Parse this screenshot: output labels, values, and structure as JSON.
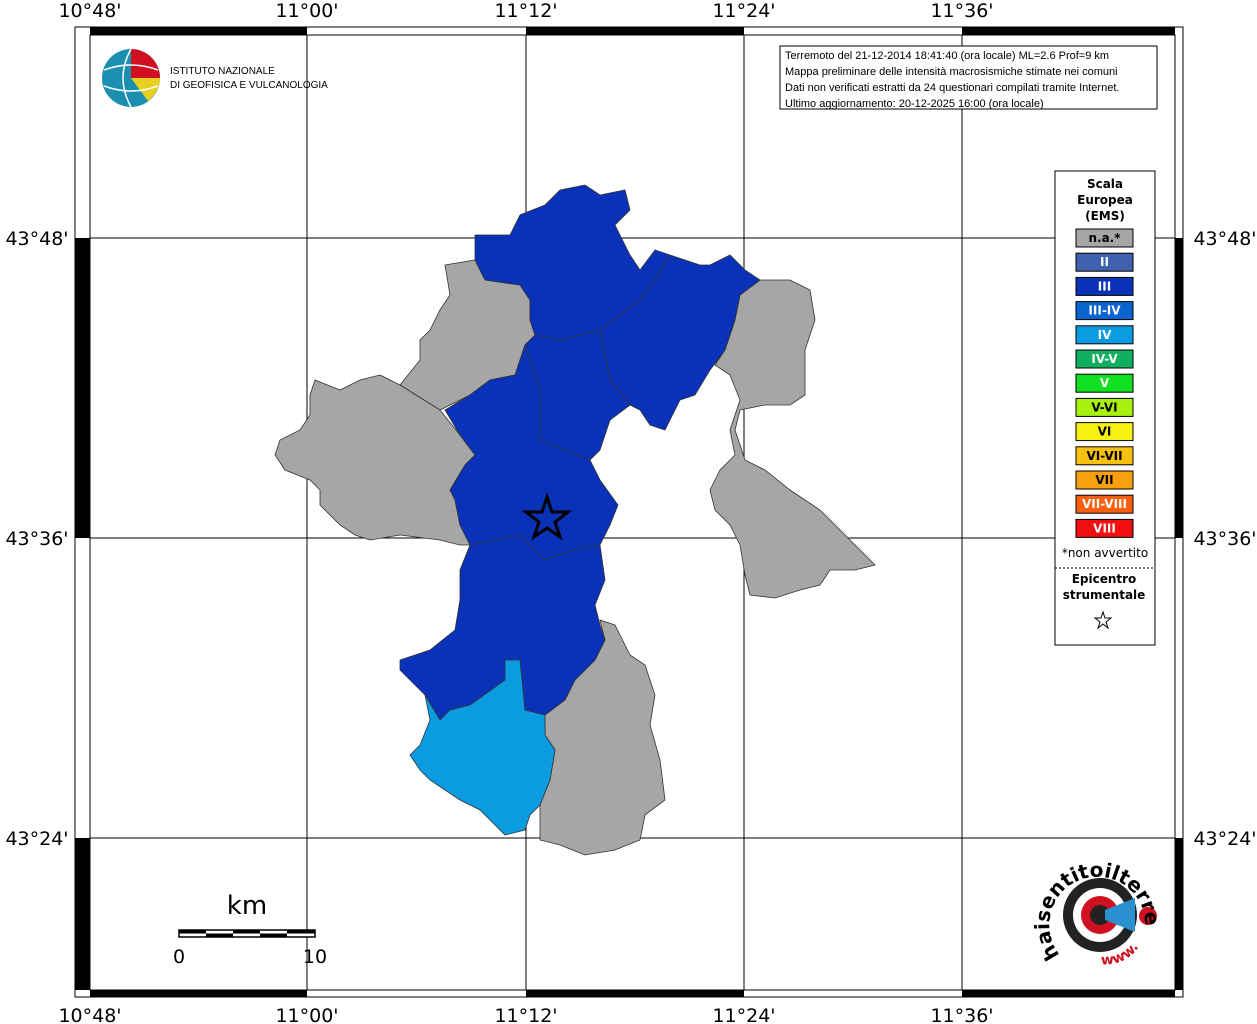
{
  "map": {
    "lon_labels": [
      "10°48'",
      "11°00'",
      "11°12'",
      "11°24'",
      "11°36'"
    ],
    "lat_labels": [
      "43°48'",
      "43°36'",
      "43°24'"
    ]
  },
  "institute": {
    "lines": [
      "ISTITUTO NAZIONALE",
      "DI GEOFISICA E VULCANOLOGIA"
    ]
  },
  "info_box": {
    "lines": [
      "Terremoto del 21-12-2014 18:41:40 (ora locale) ML=2.6 Prof=9 km",
      "Mappa preliminare delle intensità macrosismiche stimate nei comuni",
      "Dati non verificati estratti da 24 questionari compilati tramite Internet.",
      "Ultimo aggiornamento: 20-12-2025 16:00 (ora locale)"
    ]
  },
  "legend": {
    "title_lines": [
      "Scala",
      "Europea",
      "(EMS)"
    ],
    "items": [
      {
        "label": "n.a.*",
        "color": "#a6a6a6"
      },
      {
        "label": "II",
        "color": "#4060b0"
      },
      {
        "label": "III",
        "color": "#0a32b8"
      },
      {
        "label": "III-IV",
        "color": "#0a64d0"
      },
      {
        "label": "IV",
        "color": "#0a9be0"
      },
      {
        "label": "IV-V",
        "color": "#10b060"
      },
      {
        "label": "V",
        "color": "#10e020"
      },
      {
        "label": "V-VI",
        "color": "#a8f010"
      },
      {
        "label": "VI",
        "color": "#f8f010"
      },
      {
        "label": "VI-VII",
        "color": "#f8c010"
      },
      {
        "label": "VII",
        "color": "#f8a010"
      },
      {
        "label": "VII-VIII",
        "color": "#f86010"
      },
      {
        "label": "VIII",
        "color": "#f01010"
      }
    ],
    "note": "*non avvertito",
    "epicenter_lines": [
      "Epicentro",
      "strumentale"
    ]
  },
  "scale_bar": {
    "unit": "km",
    "labels": [
      "0",
      "10"
    ]
  },
  "brand": {
    "name": "haisentitoilterremoto.it",
    "prefix": "www."
  }
}
